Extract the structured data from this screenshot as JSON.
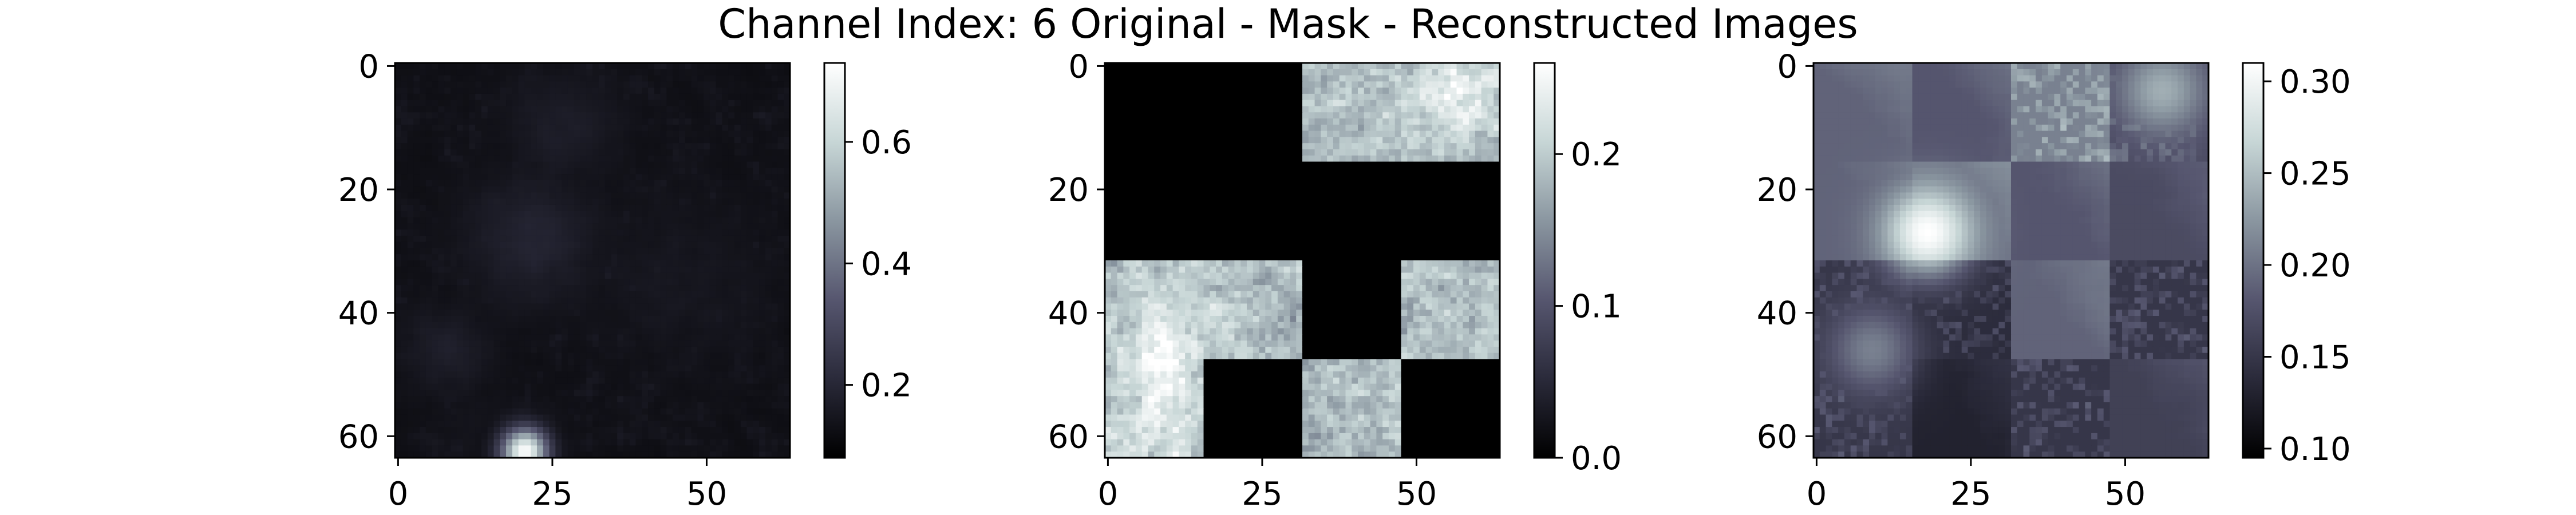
{
  "figure": {
    "title": "Channel Index: 6 Original - Mask - Reconstructed Images"
  },
  "chart_data": [
    {
      "type": "heatmap",
      "name": "original",
      "grid_size": 64,
      "x_ticks": [
        0,
        25,
        50
      ],
      "y_ticks": [
        0,
        20,
        40,
        60
      ],
      "colorbar": {
        "vmin": 0.08,
        "vmax": 0.73,
        "ticks": [
          0.2,
          0.4,
          0.6
        ],
        "tick_labels": [
          "0.2",
          "0.4",
          "0.6"
        ]
      },
      "colormap": [
        "#000000",
        "#2a2a3a",
        "#56566f",
        "#8a96a0",
        "#c7d6d6",
        "#ffffff"
      ],
      "features": [
        {
          "kind": "blob",
          "cx": 20.5,
          "cy": 62.5,
          "r": 2.6,
          "value": 0.72
        },
        {
          "kind": "blob",
          "cx": 22,
          "cy": 28,
          "r": 7,
          "value": 0.19
        },
        {
          "kind": "blob",
          "cx": 27,
          "cy": 10,
          "r": 6,
          "value": 0.17
        },
        {
          "kind": "blob",
          "cx": 8,
          "cy": 46,
          "r": 5,
          "value": 0.17
        },
        {
          "kind": "blob",
          "cx": 46,
          "cy": 35,
          "r": 10,
          "value": 0.15
        },
        {
          "kind": "blob",
          "cx": 12,
          "cy": 58,
          "r": 5,
          "value": 0.14
        }
      ],
      "base_value": 0.13,
      "noise": 0.03
    },
    {
      "type": "heatmap",
      "name": "mask",
      "grid_size": 64,
      "patch_size": 16,
      "x_ticks": [
        0,
        25,
        50
      ],
      "y_ticks": [
        0,
        20,
        40,
        60
      ],
      "colorbar": {
        "vmin": 0.0,
        "vmax": 0.26,
        "ticks": [
          0.0,
          0.1,
          0.2
        ],
        "tick_labels": [
          "0.0",
          "0.1",
          "0.2"
        ]
      },
      "colormap": [
        "#000000",
        "#2a2a3a",
        "#56566f",
        "#8a96a0",
        "#c7d6d6",
        "#ffffff"
      ],
      "visible_patches": [
        [
          0,
          2
        ],
        [
          0,
          3
        ],
        [
          2,
          0
        ],
        [
          2,
          1
        ],
        [
          2,
          3
        ],
        [
          3,
          0
        ],
        [
          3,
          2
        ]
      ],
      "masked_value": 0.0,
      "visible_mean": 0.19,
      "noise": 0.035,
      "highlights": [
        {
          "cx": 9,
          "cy": 46,
          "r": 5,
          "value": 0.25
        },
        {
          "cx": 56,
          "cy": 4,
          "r": 5,
          "value": 0.24
        },
        {
          "cx": 8,
          "cy": 58,
          "r": 4,
          "value": 0.24
        }
      ]
    },
    {
      "type": "heatmap",
      "name": "reconstructed",
      "grid_size": 64,
      "patch_size": 16,
      "x_ticks": [
        0,
        25,
        50
      ],
      "y_ticks": [
        0,
        20,
        40,
        60
      ],
      "colorbar": {
        "vmin": 0.095,
        "vmax": 0.31,
        "ticks": [
          0.1,
          0.15,
          0.2,
          0.25,
          0.3
        ],
        "tick_labels": [
          "0.10",
          "0.15",
          "0.20",
          "0.25",
          "0.30"
        ]
      },
      "colormap": [
        "#000000",
        "#2a2a3a",
        "#56566f",
        "#8a96a0",
        "#c7d6d6",
        "#ffffff"
      ],
      "patch_means": [
        [
          0.19,
          0.18,
          0.21,
          0.17
        ],
        [
          0.19,
          0.2,
          0.18,
          0.17
        ],
        [
          0.15,
          0.14,
          0.19,
          0.15
        ],
        [
          0.15,
          0.13,
          0.15,
          0.16
        ]
      ],
      "noisy_patches": [
        [
          0,
          2
        ],
        [
          0,
          3
        ],
        [
          2,
          0
        ],
        [
          2,
          1
        ],
        [
          2,
          3
        ],
        [
          3,
          0
        ],
        [
          3,
          2
        ]
      ],
      "noise": 0.03,
      "blobs": [
        {
          "cx": 18,
          "cy": 27,
          "r": 5,
          "value": 0.31
        },
        {
          "cx": 9,
          "cy": 46,
          "r": 5,
          "value": 0.21
        },
        {
          "cx": 56,
          "cy": 4,
          "r": 5,
          "value": 0.24
        }
      ]
    }
  ]
}
